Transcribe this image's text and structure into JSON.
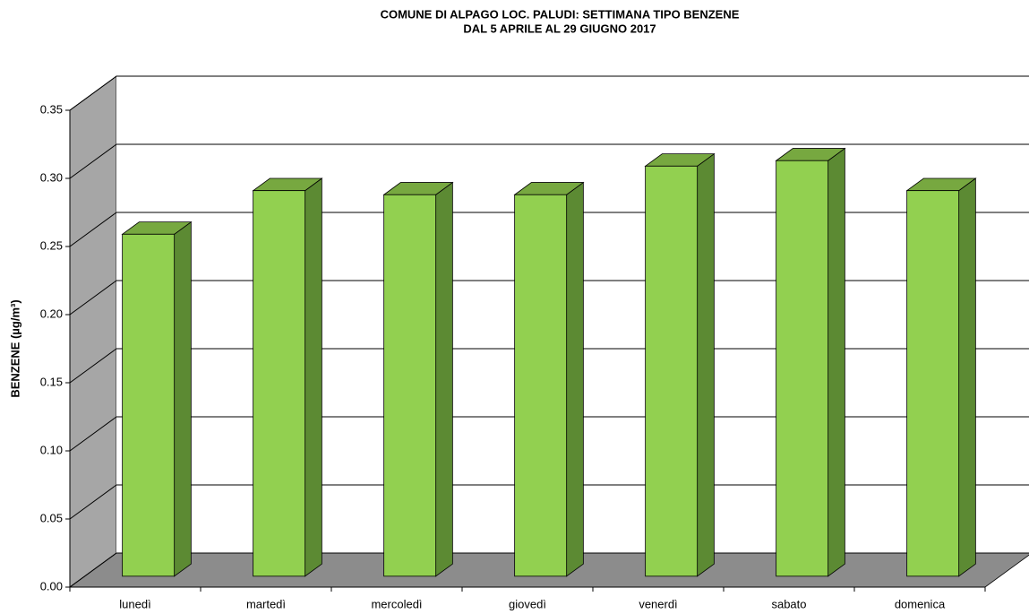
{
  "chart_data": {
    "type": "bar3d",
    "title": "COMUNE DI ALPAGO LOC. PALUDI: SETTIMANA TIPO BENZENE",
    "subtitle": "DAL 5 APRILE  AL 29 GIUGNO 2017",
    "y_label": "BENZENE (µg/m³)",
    "categories": [
      "lunedì",
      "martedì",
      "mercoledì",
      "giovedì",
      "venerdì",
      "sabato",
      "domenica"
    ],
    "values": [
      0.251,
      0.283,
      0.28,
      0.28,
      0.301,
      0.305,
      0.283
    ],
    "color": "#92d050",
    "ylim": [
      0,
      0.35
    ],
    "yticks": [
      {
        "value": 0,
        "label": "0.00"
      },
      0.05,
      {
        "value": 0.1,
        "label": "0.10"
      },
      0.15,
      {
        "value": 0.2,
        "label": "0.20"
      },
      0.25,
      {
        "value": 0.3,
        "label": "0.30"
      },
      0.35
    ],
    "grid": true
  }
}
